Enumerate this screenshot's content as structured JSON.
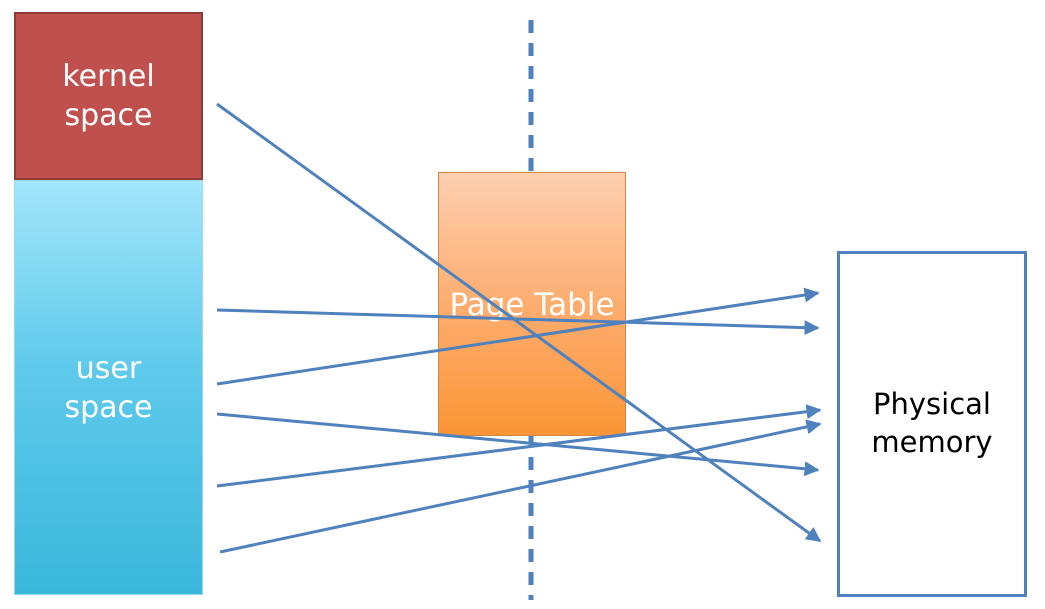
{
  "kernel_label": "kernel\nspace",
  "user_label": "user\nspace",
  "page_table_label": "Page Table",
  "physical_label": "Physical\nmemory",
  "colors": {
    "kernel": "#c0504d",
    "user": "#5fcaeb",
    "page_table": "#fdad70",
    "arrow": "#4f81bd",
    "divider": "#4f81bd"
  }
}
